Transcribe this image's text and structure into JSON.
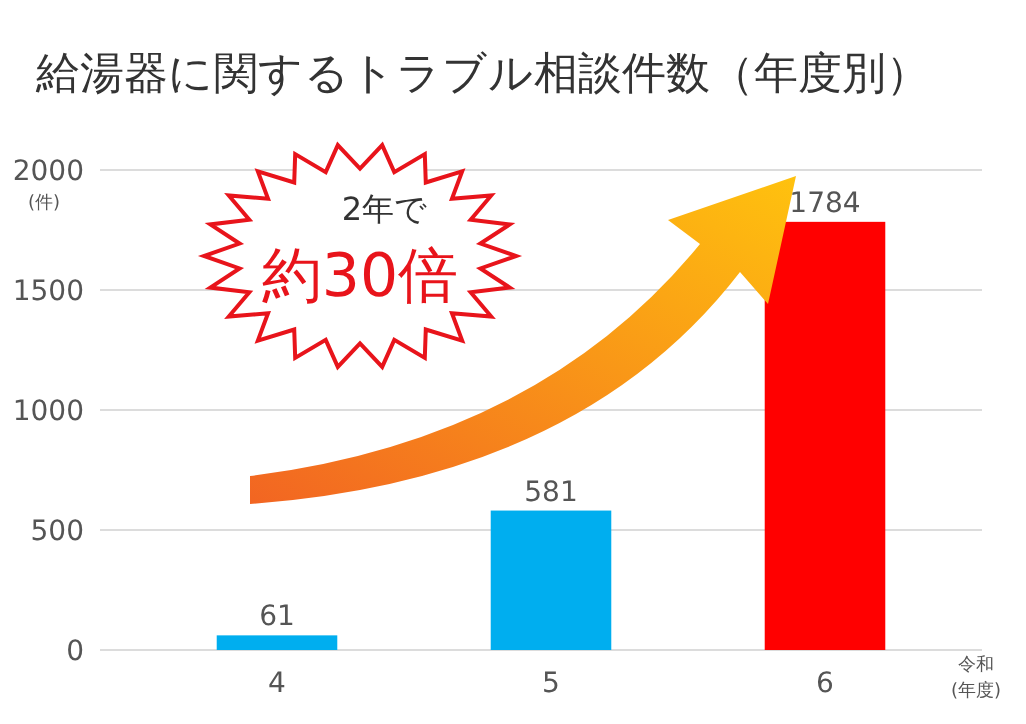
{
  "chart_data": {
    "type": "bar",
    "title": "給湯器に関するトラブル相談件数（年度別）",
    "ylabel": "(件)",
    "xlabel": "令和\n(年度)",
    "categories": [
      "4",
      "5",
      "6"
    ],
    "values": [
      61,
      581,
      1784
    ],
    "colors": [
      "#00aeef",
      "#00aeef",
      "#ff0000"
    ],
    "ylim": [
      0,
      2000
    ],
    "yticks": [
      0,
      500,
      1000,
      1500,
      2000
    ],
    "grid": "y",
    "data_labels": true,
    "annotations": [
      "2年で",
      "約30倍"
    ]
  }
}
